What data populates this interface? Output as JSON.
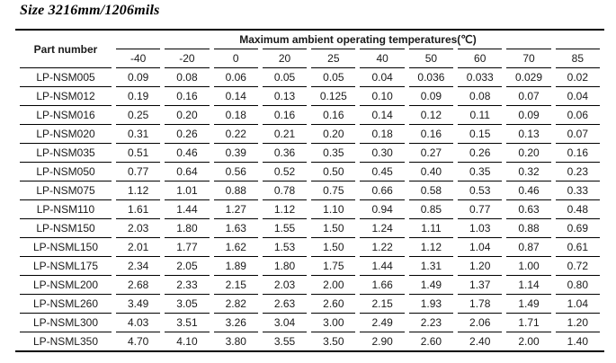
{
  "title": "Size 3216mm/1206mils",
  "table": {
    "part_number_header": "Part number",
    "temps_header": "Maximum ambient operating temperatures(℃)",
    "temp_columns": [
      "-40",
      "-20",
      "0",
      "20",
      "25",
      "40",
      "50",
      "60",
      "70",
      "85"
    ],
    "rows": [
      {
        "part": "LP-NSM005",
        "values": [
          "0.09",
          "0.08",
          "0.06",
          "0.05",
          "0.05",
          "0.04",
          "0.036",
          "0.033",
          "0.029",
          "0.02"
        ]
      },
      {
        "part": "LP-NSM012",
        "values": [
          "0.19",
          "0.16",
          "0.14",
          "0.13",
          "0.125",
          "0.10",
          "0.09",
          "0.08",
          "0.07",
          "0.04"
        ]
      },
      {
        "part": "LP-NSM016",
        "values": [
          "0.25",
          "0.20",
          "0.18",
          "0.16",
          "0.16",
          "0.14",
          "0.12",
          "0.11",
          "0.09",
          "0.06"
        ]
      },
      {
        "part": "LP-NSM020",
        "values": [
          "0.31",
          "0.26",
          "0.22",
          "0.21",
          "0.20",
          "0.18",
          "0.16",
          "0.15",
          "0.13",
          "0.07"
        ]
      },
      {
        "part": "LP-NSM035",
        "values": [
          "0.51",
          "0.46",
          "0.39",
          "0.36",
          "0.35",
          "0.30",
          "0.27",
          "0.26",
          "0.20",
          "0.16"
        ]
      },
      {
        "part": "LP-NSM050",
        "values": [
          "0.77",
          "0.64",
          "0.56",
          "0.52",
          "0.50",
          "0.45",
          "0.40",
          "0.35",
          "0.32",
          "0.23"
        ]
      },
      {
        "part": "LP-NSM075",
        "values": [
          "1.12",
          "1.01",
          "0.88",
          "0.78",
          "0.75",
          "0.66",
          "0.58",
          "0.53",
          "0.46",
          "0.33"
        ]
      },
      {
        "part": "LP-NSM110",
        "values": [
          "1.61",
          "1.44",
          "1.27",
          "1.12",
          "1.10",
          "0.94",
          "0.85",
          "0.77",
          "0.63",
          "0.48"
        ]
      },
      {
        "part": "LP-NSM150",
        "values": [
          "2.03",
          "1.80",
          "1.63",
          "1.55",
          "1.50",
          "1.24",
          "1.11",
          "1.03",
          "0.88",
          "0.69"
        ]
      },
      {
        "part": "LP-NSML150",
        "values": [
          "2.01",
          "1.77",
          "1.62",
          "1.53",
          "1.50",
          "1.22",
          "1.12",
          "1.04",
          "0.87",
          "0.61"
        ]
      },
      {
        "part": "LP-NSML175",
        "values": [
          "2.34",
          "2.05",
          "1.89",
          "1.80",
          "1.75",
          "1.44",
          "1.31",
          "1.20",
          "1.00",
          "0.72"
        ]
      },
      {
        "part": "LP-NSML200",
        "values": [
          "2.68",
          "2.33",
          "2.15",
          "2.03",
          "2.00",
          "1.66",
          "1.49",
          "1.37",
          "1.14",
          "0.80"
        ]
      },
      {
        "part": "LP-NSML260",
        "values": [
          "3.49",
          "3.05",
          "2.82",
          "2.63",
          "2.60",
          "2.15",
          "1.93",
          "1.78",
          "1.49",
          "1.04"
        ]
      },
      {
        "part": "LP-NSML300",
        "values": [
          "4.03",
          "3.51",
          "3.26",
          "3.04",
          "3.00",
          "2.49",
          "2.23",
          "2.06",
          "1.71",
          "1.20"
        ]
      },
      {
        "part": "LP-NSML350",
        "values": [
          "4.70",
          "4.10",
          "3.80",
          "3.55",
          "3.50",
          "2.90",
          "2.60",
          "2.40",
          "2.00",
          "1.40"
        ]
      }
    ]
  }
}
